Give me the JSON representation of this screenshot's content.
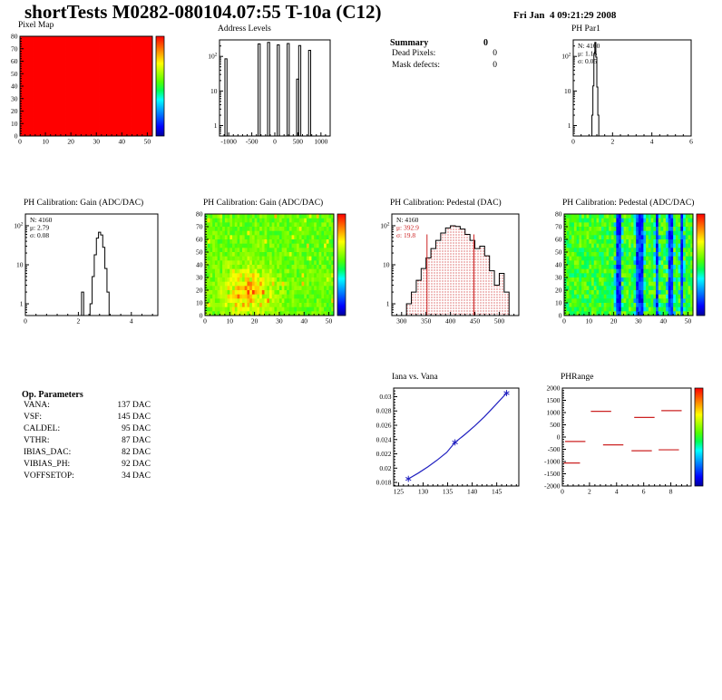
{
  "header": {
    "title": "shortTests M0282-080104.07:55 T-10a (C12)",
    "date": "Fri Jan  4 09:21:29 2008"
  },
  "palette": [
    "#00009a",
    "#0000ff",
    "#0055ff",
    "#00aaff",
    "#00ffff",
    "#00ff55",
    "#55ff00",
    "#aaff00",
    "#ffff00",
    "#ffaa00",
    "#ff5500",
    "#ff0000"
  ],
  "summary": {
    "title": "Summary",
    "value": "0",
    "rows": [
      {
        "label": "Dead Pixels:",
        "value": "0"
      },
      {
        "label": "Mask defects:",
        "value": "0"
      }
    ]
  },
  "op_parameters": {
    "title": "Op. Parameters",
    "rows": [
      {
        "label": "VANA:",
        "value": "137 DAC"
      },
      {
        "label": "VSF:",
        "value": "145 DAC"
      },
      {
        "label": "CALDEL:",
        "value": "95 DAC"
      },
      {
        "label": "VTHR:",
        "value": "87 DAC"
      },
      {
        "label": "IBIAS_DAC:",
        "value": "82 DAC"
      },
      {
        "label": "VIBIAS_PH:",
        "value": "92 DAC"
      },
      {
        "label": "VOFFSETOP:",
        "value": "34 DAC"
      }
    ]
  },
  "chart_data": [
    {
      "id": "pixel-map",
      "type": "heatmap",
      "title": "Pixel Map",
      "xlim": [
        0,
        52
      ],
      "ylim": [
        0,
        80
      ],
      "x_ticks": [
        0,
        10,
        20,
        30,
        40,
        50
      ],
      "y_ticks": [
        0,
        10,
        20,
        30,
        40,
        50,
        60,
        70,
        80
      ],
      "cols": 52,
      "rows": 20,
      "style": "uniform",
      "value": 1.0,
      "colorbar": true,
      "seed": 3
    },
    {
      "id": "address-levels",
      "type": "hist_log",
      "title": "Address Levels",
      "xlim": [
        -1200,
        1200
      ],
      "x_ticks": [
        -1000,
        -500,
        0,
        500,
        1000
      ],
      "ymin": 0.5,
      "ymax": 300,
      "bin_width": 45,
      "spikes": [
        [
          -1060,
          85
        ],
        [
          -340,
          230
        ],
        [
          -135,
          255
        ],
        [
          75,
          215
        ],
        [
          290,
          235
        ],
        [
          495,
          22
        ],
        [
          540,
          205
        ],
        [
          755,
          150
        ]
      ]
    },
    {
      "id": "ph-par1",
      "type": "hist_log",
      "title": "PH Par1",
      "xlim": [
        0,
        6
      ],
      "x_ticks": [
        0,
        2,
        4,
        6
      ],
      "ymin": 0.5,
      "ymax": 300,
      "x0": 0.95,
      "bin_width": 0.05,
      "counts": [
        2,
        14,
        120,
        255,
        95,
        13,
        2
      ],
      "stats": [
        {
          "text": "N: 4160",
          "color": "#000000"
        },
        {
          "text": "μ: 1.16",
          "color": "#000000"
        },
        {
          "text": "σ: 0.05",
          "color": "#000000"
        }
      ]
    },
    {
      "id": "gain-hist",
      "type": "hist_log",
      "title": "PH Calibration: Gain (ADC/DAC)",
      "xlim": [
        0,
        5
      ],
      "x_ticks": [
        0,
        2,
        4
      ],
      "ymin": 0.5,
      "ymax": 200,
      "x0": 2.12,
      "bin_width": 0.08,
      "counts": [
        2,
        0,
        0,
        0,
        1,
        5,
        18,
        48,
        68,
        58,
        28,
        8,
        2
      ],
      "stats": [
        {
          "text": "N: 4160",
          "color": "#000000"
        },
        {
          "text": "μ: 2.79",
          "color": "#000000"
        },
        {
          "text": "σ: 0.08",
          "color": "#000000"
        }
      ]
    },
    {
      "id": "gain-map",
      "type": "heatmap",
      "title": "PH Calibration: Gain (ADC/DAC)",
      "xlim": [
        0,
        52
      ],
      "ylim": [
        0,
        80
      ],
      "x_ticks": [
        0,
        10,
        20,
        30,
        40,
        50
      ],
      "y_ticks": [
        0,
        10,
        20,
        30,
        40,
        50,
        60,
        70,
        80
      ],
      "cols": 52,
      "rows": 24,
      "style": "noisy",
      "colorbar": true,
      "seed": 7
    },
    {
      "id": "pedestal-hist",
      "type": "hist_log",
      "title": "PH Calibration: Pedestal (DAC)",
      "xlim": [
        280,
        540
      ],
      "x_ticks": [
        300,
        350,
        400,
        450,
        500
      ],
      "ymin": 0.5,
      "ymax": 200,
      "x0": 310,
      "bin_width": 10,
      "counts": [
        1,
        2,
        4,
        8,
        15,
        26,
        42,
        65,
        88,
        100,
        96,
        82,
        60,
        42,
        26,
        30,
        17,
        7,
        3,
        6,
        2
      ],
      "hatch": true,
      "vlines": [
        352,
        448
      ],
      "vline_top": 60,
      "stats": [
        {
          "text": "N: 4160",
          "color": "#000000"
        },
        {
          "text": "μ: 392.9",
          "color": "#cc2222"
        },
        {
          "text": "σ: 19.8",
          "color": "#cc2222"
        }
      ]
    },
    {
      "id": "pedestal-map",
      "type": "heatmap",
      "title": "PH Calibration: Pedestal (ADC/DAC)",
      "xlim": [
        0,
        52
      ],
      "ylim": [
        0,
        80
      ],
      "x_ticks": [
        0,
        10,
        20,
        30,
        40,
        50
      ],
      "y_ticks": [
        0,
        10,
        20,
        30,
        40,
        50,
        60,
        70,
        80
      ],
      "cols": 52,
      "rows": 24,
      "style": "striped",
      "stripe_cols": [
        21,
        22,
        29,
        30,
        31,
        37,
        42,
        43,
        47
      ],
      "colorbar": true,
      "seed": 11
    },
    {
      "id": "iana-vs-vana",
      "type": "line",
      "title": "Iana vs. Vana",
      "xlim": [
        124,
        149.5
      ],
      "x_ticks": [
        125,
        130,
        135,
        140,
        145
      ],
      "ylim": [
        0.0175,
        0.0312
      ],
      "y_ticks": [
        0.018,
        0.02,
        0.022,
        0.024,
        0.026,
        0.028,
        0.03
      ],
      "color": "#2020c0",
      "line_points": [
        [
          127,
          0.0185
        ],
        [
          129,
          0.0193
        ],
        [
          131,
          0.0202
        ],
        [
          133,
          0.0212
        ],
        [
          134.8,
          0.0222
        ],
        [
          136.5,
          0.0236
        ],
        [
          138.5,
          0.0247
        ],
        [
          140.5,
          0.0259
        ],
        [
          142.5,
          0.0272
        ],
        [
          144.7,
          0.0288
        ],
        [
          147,
          0.0305
        ]
      ],
      "marker_points": [
        [
          127,
          0.0185
        ],
        [
          136.5,
          0.0236
        ],
        [
          147,
          0.0305
        ]
      ]
    },
    {
      "id": "ph-range",
      "type": "segments",
      "title": "PHRange",
      "xlim": [
        0,
        9.5
      ],
      "x_ticks": [
        0,
        2,
        4,
        6,
        8
      ],
      "ylim": [
        -2000,
        2000
      ],
      "y_ticks": [
        2000,
        1500,
        1000,
        500,
        0,
        -500,
        -1000,
        -1500,
        -2000
      ],
      "color": "#cc2222",
      "colorbar": true,
      "segments": [
        [
          2.1,
          3.6,
          1050
        ],
        [
          5.3,
          6.8,
          800
        ],
        [
          7.3,
          8.8,
          1080
        ],
        [
          0.2,
          1.7,
          -180
        ],
        [
          3.0,
          4.5,
          -320
        ],
        [
          5.1,
          6.6,
          -560
        ],
        [
          0.1,
          1.3,
          -1060
        ],
        [
          7.1,
          8.6,
          -520
        ]
      ]
    }
  ]
}
